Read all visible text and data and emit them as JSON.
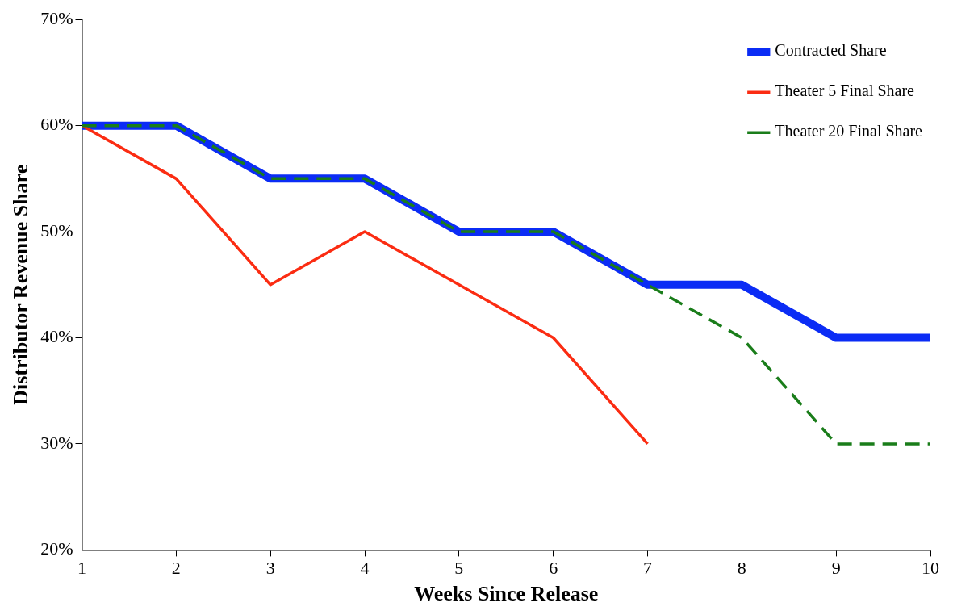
{
  "chart_data": {
    "type": "line",
    "xlabel": "Weeks Since Release",
    "ylabel": "Distributor Revenue Share",
    "xlim": [
      1,
      10
    ],
    "xticks": [
      1,
      2,
      3,
      4,
      5,
      6,
      7,
      8,
      9,
      10
    ],
    "ylim": [
      20,
      70
    ],
    "yticks": [
      {
        "value": 20,
        "label": "20%"
      },
      {
        "value": 30,
        "label": "30%"
      },
      {
        "value": 40,
        "label": "40%"
      },
      {
        "value": 50,
        "label": "50%"
      },
      {
        "value": 60,
        "label": "60%"
      },
      {
        "value": 70,
        "label": "70%"
      }
    ],
    "x": [
      1,
      2,
      3,
      4,
      5,
      6,
      7,
      8,
      9,
      10
    ],
    "series": [
      {
        "name": "Contracted Share",
        "color": "#0b2cf5",
        "line_style": "solid",
        "values": [
          60,
          60,
          55,
          55,
          50,
          50,
          45,
          45,
          40,
          40
        ]
      },
      {
        "name": "Theater 5 Final Share",
        "color": "#fb2c12",
        "line_style": "solid",
        "values": [
          60,
          55,
          45,
          50,
          45,
          40,
          30,
          null,
          null,
          null
        ]
      },
      {
        "name": "Theater 20 Final Share",
        "color": "#1a7d1a",
        "line_style": "dashed",
        "values": [
          60,
          60,
          55,
          55,
          50,
          50,
          45,
          40,
          30,
          30
        ]
      }
    ],
    "grid": false,
    "legend": "top right",
    "marker": "none"
  }
}
